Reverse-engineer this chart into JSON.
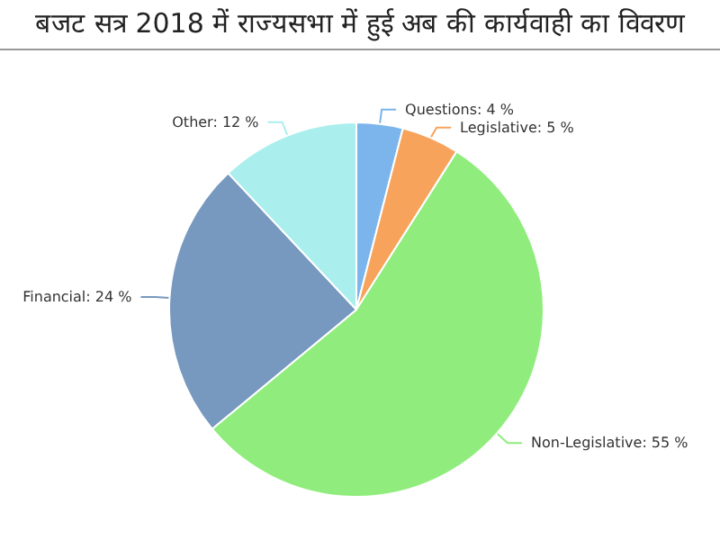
{
  "chart_data": {
    "type": "pie",
    "title": "बजट सत्र 2018 में राज्यसभा में हुई अब की कार्यवाही का विवरण",
    "categories": [
      "Questions",
      "Legislative",
      "Non-Legislative",
      "Financial",
      "Other"
    ],
    "values": [
      4,
      5,
      55,
      24,
      12
    ],
    "value_labels": [
      "4 %",
      "5 %",
      "55 %",
      "24 %",
      "12 %"
    ],
    "colors": [
      "#7cb5ec",
      "#f7a35c",
      "#90ed7d",
      "#7798bf",
      "#aaeeee"
    ],
    "legend": false
  }
}
